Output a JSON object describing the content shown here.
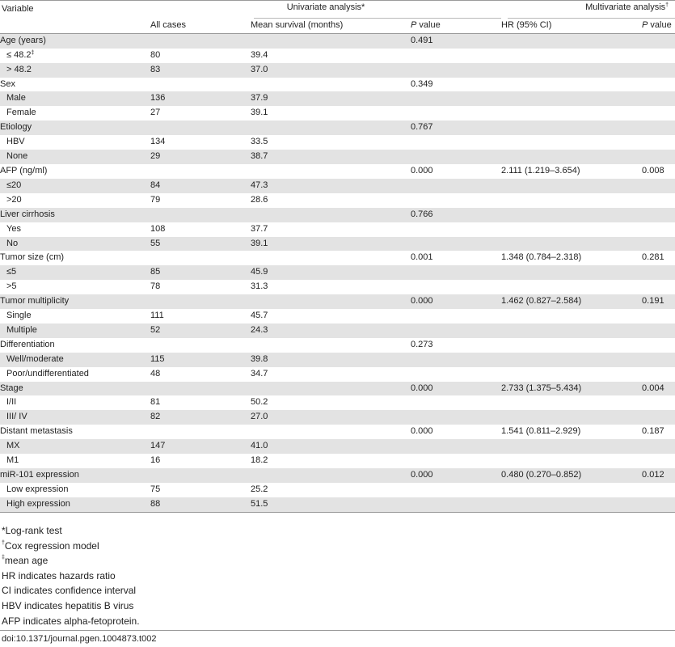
{
  "header": {
    "variable": "Variable",
    "univariate": "Univariate analysis",
    "univariate_mark": "*",
    "multivariate": "Multivariate analysis",
    "multivariate_mark": "†",
    "all_cases": "All cases",
    "mean_survival": "Mean survival (months)",
    "p_italic": "P",
    "p_rest": " value",
    "hr": "HR (95% CI)"
  },
  "rows": [
    {
      "variable": "Age (years)",
      "sub": false,
      "all_cases": "",
      "mean_survival": "",
      "p_uni": "0.491",
      "hr": "",
      "p_multi": ""
    },
    {
      "variable": "≤ 48.2",
      "mark": "‡",
      "sub": true,
      "all_cases": "80",
      "mean_survival": "39.4",
      "p_uni": "",
      "hr": "",
      "p_multi": ""
    },
    {
      "variable": "> 48.2",
      "sub": true,
      "all_cases": "83",
      "mean_survival": "37.0",
      "p_uni": "",
      "hr": "",
      "p_multi": ""
    },
    {
      "variable": "Sex",
      "sub": false,
      "all_cases": "",
      "mean_survival": "",
      "p_uni": "0.349",
      "hr": "",
      "p_multi": ""
    },
    {
      "variable": "Male",
      "sub": true,
      "all_cases": "136",
      "mean_survival": "37.9",
      "p_uni": "",
      "hr": "",
      "p_multi": ""
    },
    {
      "variable": "Female",
      "sub": true,
      "all_cases": "27",
      "mean_survival": "39.1",
      "p_uni": "",
      "hr": "",
      "p_multi": ""
    },
    {
      "variable": "Etiology",
      "sub": false,
      "all_cases": "",
      "mean_survival": "",
      "p_uni": "0.767",
      "hr": "",
      "p_multi": ""
    },
    {
      "variable": "HBV",
      "sub": true,
      "all_cases": "134",
      "mean_survival": "33.5",
      "p_uni": "",
      "hr": "",
      "p_multi": ""
    },
    {
      "variable": "None",
      "sub": true,
      "all_cases": "29",
      "mean_survival": "38.7",
      "p_uni": "",
      "hr": "",
      "p_multi": ""
    },
    {
      "variable": "AFP (ng/ml)",
      "sub": false,
      "all_cases": "",
      "mean_survival": "",
      "p_uni": "0.000",
      "hr": "2.111 (1.219–3.654)",
      "p_multi": "0.008"
    },
    {
      "variable": "≤20",
      "sub": true,
      "all_cases": "84",
      "mean_survival": "47.3",
      "p_uni": "",
      "hr": "",
      "p_multi": ""
    },
    {
      "variable": ">20",
      "sub": true,
      "all_cases": "79",
      "mean_survival": "28.6",
      "p_uni": "",
      "hr": "",
      "p_multi": ""
    },
    {
      "variable": "Liver cirrhosis",
      "sub": false,
      "all_cases": "",
      "mean_survival": "",
      "p_uni": "0.766",
      "hr": "",
      "p_multi": ""
    },
    {
      "variable": "Yes",
      "sub": true,
      "all_cases": "108",
      "mean_survival": "37.7",
      "p_uni": "",
      "hr": "",
      "p_multi": ""
    },
    {
      "variable": "No",
      "sub": true,
      "all_cases": "55",
      "mean_survival": "39.1",
      "p_uni": "",
      "hr": "",
      "p_multi": ""
    },
    {
      "variable": "Tumor size (cm)",
      "sub": false,
      "all_cases": "",
      "mean_survival": "",
      "p_uni": "0.001",
      "hr": "1.348 (0.784–2.318)",
      "p_multi": "0.281"
    },
    {
      "variable": "≤5",
      "sub": true,
      "all_cases": "85",
      "mean_survival": "45.9",
      "p_uni": "",
      "hr": "",
      "p_multi": ""
    },
    {
      "variable": ">5",
      "sub": true,
      "all_cases": "78",
      "mean_survival": "31.3",
      "p_uni": "",
      "hr": "",
      "p_multi": ""
    },
    {
      "variable": "Tumor multiplicity",
      "sub": false,
      "all_cases": "",
      "mean_survival": "",
      "p_uni": "0.000",
      "hr": "1.462 (0.827–2.584)",
      "p_multi": "0.191"
    },
    {
      "variable": "Single",
      "sub": true,
      "all_cases": "111",
      "mean_survival": "45.7",
      "p_uni": "",
      "hr": "",
      "p_multi": ""
    },
    {
      "variable": "Multiple",
      "sub": true,
      "all_cases": "52",
      "mean_survival": "24.3",
      "p_uni": "",
      "hr": "",
      "p_multi": ""
    },
    {
      "variable": "Differentiation",
      "sub": false,
      "all_cases": "",
      "mean_survival": "",
      "p_uni": "0.273",
      "hr": "",
      "p_multi": ""
    },
    {
      "variable": "Well/moderate",
      "sub": true,
      "all_cases": "115",
      "mean_survival": "39.8",
      "p_uni": "",
      "hr": "",
      "p_multi": ""
    },
    {
      "variable": "Poor/undifferentiated",
      "sub": true,
      "all_cases": "48",
      "mean_survival": "34.7",
      "p_uni": "",
      "hr": "",
      "p_multi": ""
    },
    {
      "variable": "Stage",
      "sub": false,
      "all_cases": "",
      "mean_survival": "",
      "p_uni": "0.000",
      "hr": "2.733 (1.375–5.434)",
      "p_multi": "0.004"
    },
    {
      "variable": "I/II",
      "sub": true,
      "all_cases": "81",
      "mean_survival": "50.2",
      "p_uni": "",
      "hr": "",
      "p_multi": ""
    },
    {
      "variable": "III/ IV",
      "sub": true,
      "all_cases": "82",
      "mean_survival": "27.0",
      "p_uni": "",
      "hr": "",
      "p_multi": ""
    },
    {
      "variable": "Distant metastasis",
      "sub": false,
      "all_cases": "",
      "mean_survival": "",
      "p_uni": "0.000",
      "hr": "1.541 (0.811–2.929)",
      "p_multi": "0.187"
    },
    {
      "variable": "MX",
      "sub": true,
      "all_cases": "147",
      "mean_survival": "41.0",
      "p_uni": "",
      "hr": "",
      "p_multi": ""
    },
    {
      "variable": "M1",
      "sub": true,
      "all_cases": "16",
      "mean_survival": "18.2",
      "p_uni": "",
      "hr": "",
      "p_multi": ""
    },
    {
      "variable": "miR-101 expression",
      "sub": false,
      "all_cases": "",
      "mean_survival": "",
      "p_uni": "0.000",
      "hr": "0.480 (0.270–0.852)",
      "p_multi": "0.012"
    },
    {
      "variable": "Low expression",
      "sub": true,
      "all_cases": "75",
      "mean_survival": "25.2",
      "p_uni": "",
      "hr": "",
      "p_multi": ""
    },
    {
      "variable": "High expression",
      "sub": true,
      "all_cases": "88",
      "mean_survival": "51.5",
      "p_uni": "",
      "hr": "",
      "p_multi": ""
    }
  ],
  "footnotes": [
    {
      "mark": "*",
      "text": "Log-rank test"
    },
    {
      "mark": "†",
      "text": "Cox regression model"
    },
    {
      "mark": "‡",
      "text": "mean age"
    },
    {
      "mark": "",
      "text": "HR indicates hazards ratio"
    },
    {
      "mark": "",
      "text": "CI indicates confidence interval"
    },
    {
      "mark": "",
      "text": "HBV indicates hepatitis B virus"
    },
    {
      "mark": "",
      "text": "AFP indicates alpha-fetoprotein."
    }
  ],
  "doi": "doi:10.1371/journal.pgen.1004873.t002",
  "colors": {
    "stripe": "#e3e3e3",
    "rule": "#9a9a9a",
    "text": "#222222"
  }
}
